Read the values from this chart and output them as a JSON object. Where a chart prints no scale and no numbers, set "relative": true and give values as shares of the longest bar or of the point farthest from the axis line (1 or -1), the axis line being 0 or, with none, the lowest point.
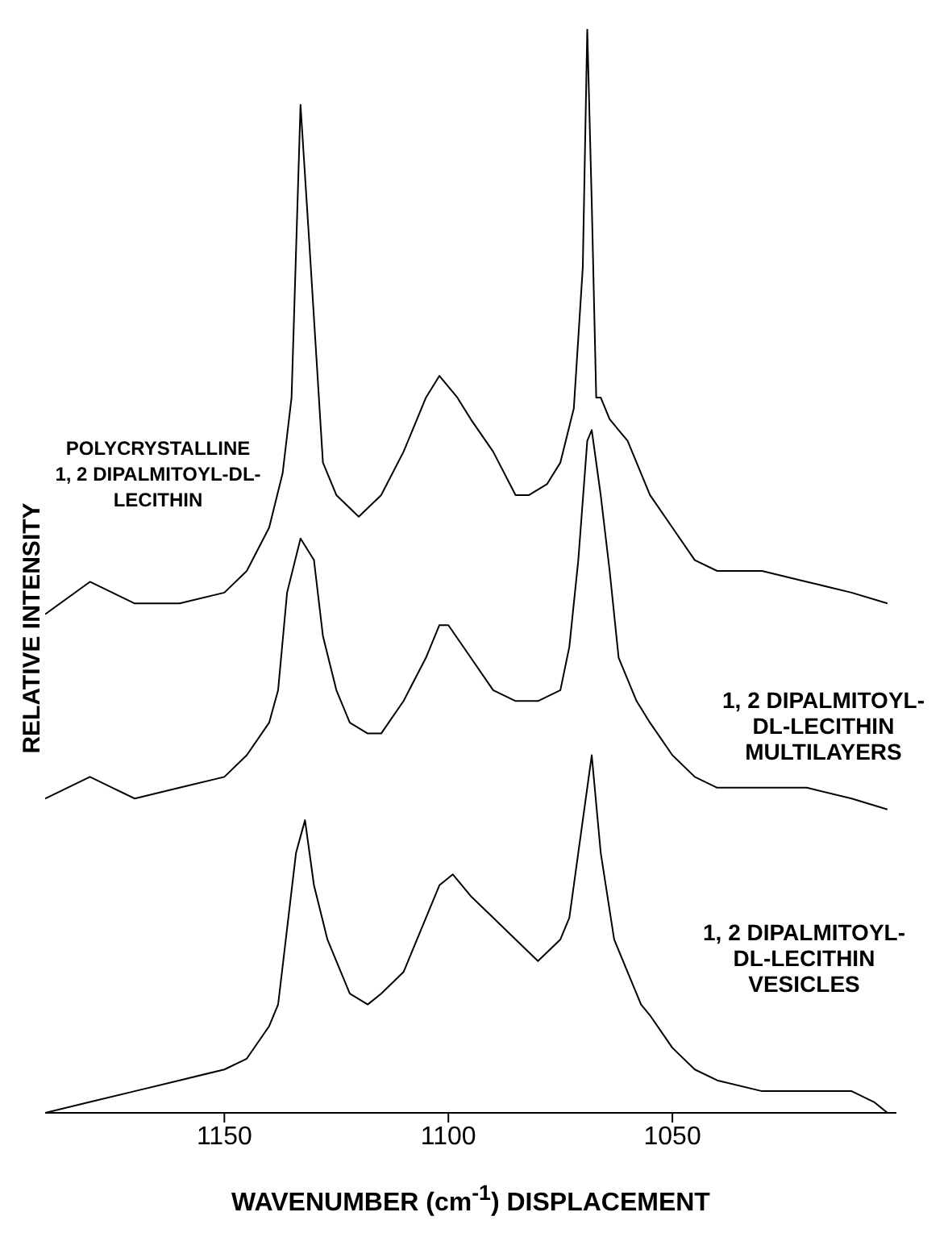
{
  "chart_data": {
    "type": "line",
    "relative": true,
    "xlabel": "WAVENUMBER (cm$^{-1}$) DISPLACEMENT",
    "ylabel": "RELATIVE INTENSITY",
    "xlim": [
      1190,
      1000
    ],
    "xticks": [
      1150,
      1100,
      1050
    ],
    "series": [
      {
        "name": "POLYCRYSTALLINE\n1, 2 DIPALMITOYL-DL-LECITHIN",
        "color": "#000000",
        "x": [
          1190,
          1180,
          1170,
          1160,
          1150,
          1145,
          1140,
          1137,
          1135,
          1133,
          1131,
          1128,
          1125,
          1120,
          1115,
          1110,
          1105,
          1102,
          1098,
          1095,
          1090,
          1085,
          1082,
          1078,
          1075,
          1072,
          1070,
          1069,
          1068,
          1067,
          1066,
          1064,
          1062,
          1060,
          1055,
          1050,
          1045,
          1040,
          1030,
          1020,
          1010,
          1002
        ],
        "values": [
          0.46,
          0.49,
          0.47,
          0.47,
          0.48,
          0.5,
          0.54,
          0.59,
          0.66,
          0.93,
          0.8,
          0.6,
          0.57,
          0.55,
          0.57,
          0.61,
          0.66,
          0.68,
          0.66,
          0.64,
          0.61,
          0.57,
          0.57,
          0.58,
          0.6,
          0.65,
          0.78,
          1,
          0.84,
          0.66,
          0.66,
          0.64,
          0.63,
          0.62,
          0.57,
          0.54,
          0.51,
          0.5,
          0.5,
          0.49,
          0.48,
          0.47
        ]
      },
      {
        "name": "1, 2 DIPALMITOYL-\nDL-LECITHIN\nMULTILAYERS",
        "color": "#000000",
        "x": [
          1190,
          1185,
          1180,
          1175,
          1170,
          1160,
          1150,
          1145,
          1140,
          1138,
          1136,
          1133,
          1130,
          1128,
          1125,
          1122,
          1118,
          1115,
          1110,
          1105,
          1102,
          1100,
          1095,
          1090,
          1085,
          1080,
          1075,
          1073,
          1071,
          1069,
          1068,
          1066,
          1064,
          1062,
          1058,
          1055,
          1050,
          1045,
          1040,
          1030,
          1020,
          1010,
          1002
        ],
        "values": [
          0.29,
          0.3,
          0.31,
          0.3,
          0.29,
          0.3,
          0.31,
          0.33,
          0.36,
          0.39,
          0.48,
          0.53,
          0.51,
          0.44,
          0.39,
          0.36,
          0.35,
          0.35,
          0.38,
          0.42,
          0.45,
          0.45,
          0.42,
          0.39,
          0.38,
          0.38,
          0.39,
          0.43,
          0.51,
          0.62,
          0.63,
          0.57,
          0.5,
          0.42,
          0.38,
          0.36,
          0.33,
          0.31,
          0.3,
          0.3,
          0.3,
          0.29,
          0.28
        ]
      },
      {
        "name": "1, 2 DIPALMITOYL-\nDL-LECITHIN\nVESICLES",
        "color": "#000000",
        "x": [
          1190,
          1180,
          1170,
          1160,
          1150,
          1145,
          1140,
          1138,
          1136,
          1134,
          1132,
          1130,
          1127,
          1125,
          1122,
          1118,
          1115,
          1110,
          1105,
          1102,
          1099,
          1095,
          1090,
          1085,
          1080,
          1075,
          1073,
          1071,
          1069,
          1068,
          1066,
          1063,
          1060,
          1057,
          1055,
          1050,
          1045,
          1040,
          1030,
          1020,
          1010,
          1005,
          1002
        ],
        "values": [
          0,
          0.01,
          0.02,
          0.03,
          0.04,
          0.05,
          0.08,
          0.1,
          0.17,
          0.24,
          0.27,
          0.21,
          0.16,
          0.14,
          0.11,
          0.1,
          0.11,
          0.13,
          0.18,
          0.21,
          0.22,
          0.2,
          0.18,
          0.16,
          0.14,
          0.16,
          0.18,
          0.24,
          0.3,
          0.33,
          0.24,
          0.16,
          0.13,
          0.1,
          0.09,
          0.06,
          0.04,
          0.03,
          0.02,
          0.02,
          0.02,
          0.01,
          0
        ]
      }
    ]
  }
}
